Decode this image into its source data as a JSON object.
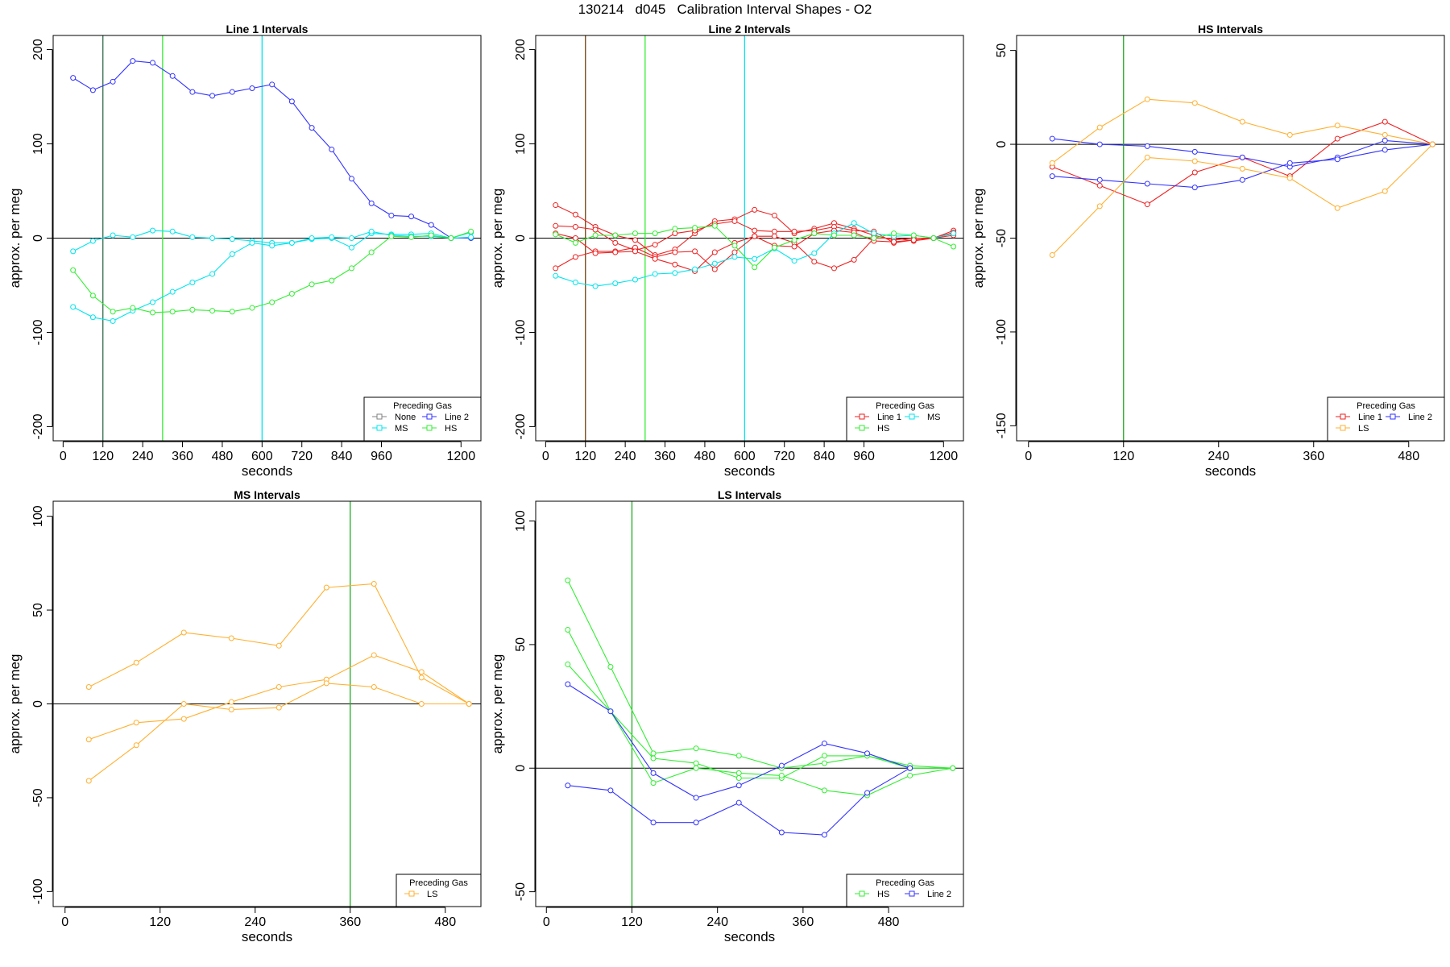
{
  "figure_title": "130214   d045   Calibration Interval Shapes - O2",
  "legend_title": "Preceding Gas",
  "colors": {
    "None": "#808080",
    "MS": "#00e5ee",
    "Line 2": "#3333ff",
    "HS": "#33ee33",
    "Line 1": "#ee2222",
    "LS": "#ffb030",
    "axis": "#000000",
    "vline_dark": "#2e6b4a",
    "vline_brown": "#704010",
    "vline_green": "#22aa22"
  },
  "chart_data": [
    {
      "type": "line",
      "title": "Line 1 Intervals",
      "xlabel": "seconds",
      "ylabel": "approx. per meg",
      "xlim": [
        -30,
        1260
      ],
      "ylim": [
        -215,
        215
      ],
      "xticks": [
        0,
        120,
        240,
        360,
        480,
        600,
        720,
        840,
        960,
        1200
      ],
      "yticks": [
        -200,
        -100,
        0,
        100,
        200
      ],
      "vlines": [
        {
          "x": 120,
          "color": "#2e6b4a"
        },
        {
          "x": 300,
          "color": "#33ee33"
        },
        {
          "x": 600,
          "color": "#00e5ee"
        }
      ],
      "legend": [
        {
          "label": "None",
          "color": "#808080"
        },
        {
          "label": "Line 2",
          "color": "#3333ff"
        },
        {
          "label": "MS",
          "color": "#00e5ee"
        },
        {
          "label": "HS",
          "color": "#33ee33"
        }
      ],
      "series": [
        {
          "name": "Line 2",
          "color": "#3333ff",
          "x": [
            30,
            90,
            150,
            210,
            270,
            330,
            390,
            450,
            510,
            570,
            630,
            690,
            750,
            810,
            870,
            930,
            990,
            1050,
            1110,
            1170,
            1230
          ],
          "y": [
            170,
            157,
            166,
            188,
            186,
            172,
            155,
            151,
            155,
            159,
            163,
            145,
            117,
            94,
            63,
            37,
            24,
            23,
            14,
            0,
            0
          ]
        },
        {
          "name": "MS",
          "color": "#00e5ee",
          "x": [
            30,
            90,
            150,
            210,
            270,
            330,
            390,
            450,
            510,
            570,
            630,
            690,
            750,
            810,
            870,
            930,
            990,
            1050,
            1110,
            1170,
            1230
          ],
          "y": [
            -14,
            -3,
            3,
            1,
            8,
            7,
            1,
            0,
            -1,
            -3,
            -5,
            -5,
            -1,
            0,
            -10,
            5,
            4,
            4,
            5,
            0,
            1
          ]
        },
        {
          "name": "MS",
          "color": "#00e5ee",
          "x": [
            30,
            90,
            150,
            210,
            270,
            330,
            390,
            450,
            510,
            570,
            630,
            690,
            750,
            810,
            870,
            930,
            990,
            1050,
            1110,
            1170,
            1230
          ],
          "y": [
            -73,
            -84,
            -88,
            -77,
            -68,
            -57,
            -47,
            -38,
            -17,
            -5,
            -8,
            -5,
            0,
            1,
            0,
            7,
            3,
            2,
            2,
            0,
            6
          ]
        },
        {
          "name": "HS",
          "color": "#33ee33",
          "x": [
            30,
            90,
            150,
            210,
            270,
            330,
            390,
            450,
            510,
            570,
            630,
            690,
            750,
            810,
            870,
            930,
            990,
            1050,
            1110,
            1170,
            1230
          ],
          "y": [
            -34,
            -61,
            -78,
            -74,
            -79,
            -78,
            -76,
            -77,
            -78,
            -74,
            -68,
            -59,
            -49,
            -45,
            -32,
            -15,
            2,
            1,
            3,
            0,
            7
          ]
        }
      ]
    },
    {
      "type": "line",
      "title": "Line 2 Intervals",
      "xlabel": "seconds",
      "ylabel": "approx. per meg",
      "xlim": [
        -30,
        1260
      ],
      "ylim": [
        -215,
        215
      ],
      "xticks": [
        0,
        120,
        240,
        360,
        480,
        600,
        720,
        840,
        960,
        1200
      ],
      "yticks": [
        -200,
        -100,
        0,
        100,
        200
      ],
      "vlines": [
        {
          "x": 120,
          "color": "#704010"
        },
        {
          "x": 300,
          "color": "#33ee33"
        },
        {
          "x": 600,
          "color": "#00e5ee"
        }
      ],
      "legend": [
        {
          "label": "Line 1",
          "color": "#ee2222"
        },
        {
          "label": "MS",
          "color": "#00e5ee"
        },
        {
          "label": "HS",
          "color": "#33ee33"
        }
      ],
      "series": [
        {
          "name": "Line 1",
          "color": "#ee2222",
          "x": [
            30,
            90,
            150,
            210,
            270,
            330,
            390,
            450,
            510,
            570,
            630,
            690,
            750,
            810,
            870,
            930,
            990,
            1050,
            1110,
            1170,
            1230
          ],
          "y": [
            35,
            25,
            12,
            3,
            -2,
            -18,
            -12,
            5,
            18,
            20,
            30,
            24,
            5,
            10,
            16,
            10,
            3,
            -2,
            0,
            0,
            8
          ]
        },
        {
          "name": "Line 1",
          "color": "#ee2222",
          "x": [
            30,
            90,
            150,
            210,
            270,
            330,
            390,
            450,
            510,
            570,
            630,
            690,
            750,
            810,
            870,
            930,
            990,
            1050,
            1110,
            1170,
            1230
          ],
          "y": [
            13,
            12,
            9,
            -5,
            -13,
            -7,
            5,
            8,
            15,
            18,
            8,
            7,
            7,
            8,
            12,
            8,
            7,
            -5,
            -2,
            0,
            5
          ]
        },
        {
          "name": "Line 1",
          "color": "#ee2222",
          "x": [
            30,
            90,
            150,
            210,
            270,
            330,
            390,
            450,
            510,
            570,
            630,
            690,
            750,
            810,
            870,
            930,
            990,
            1050,
            1110,
            1170,
            1230
          ],
          "y": [
            -32,
            -20,
            -14,
            -14,
            -10,
            -20,
            -15,
            -14,
            -33,
            -15,
            2,
            2,
            -5,
            -25,
            -32,
            -23,
            0,
            0,
            -3,
            0,
            6
          ]
        },
        {
          "name": "Line 1",
          "color": "#ee2222",
          "x": [
            30,
            90,
            150,
            210,
            270,
            330,
            390,
            450,
            510,
            570,
            630,
            690,
            750,
            810,
            870,
            930,
            990,
            1050,
            1110,
            1170,
            1230
          ],
          "y": [
            5,
            0,
            -16,
            -15,
            -14,
            -22,
            -28,
            -35,
            -15,
            -5,
            2,
            -8,
            -9,
            5,
            8,
            6,
            -3,
            -4,
            -2,
            0,
            3
          ]
        },
        {
          "name": "MS",
          "color": "#00e5ee",
          "x": [
            30,
            90,
            150,
            210,
            270,
            330,
            390,
            450,
            510,
            570,
            630,
            690,
            750,
            810,
            870,
            930,
            990,
            1050,
            1110,
            1170,
            1230
          ],
          "y": [
            -40,
            -47,
            -51,
            -48,
            -44,
            -38,
            -37,
            -33,
            -27,
            -20,
            -22,
            -11,
            -24,
            -16,
            5,
            16,
            5,
            2,
            3,
            0,
            5
          ]
        },
        {
          "name": "HS",
          "color": "#33ee33",
          "x": [
            30,
            90,
            150,
            210,
            270,
            330,
            390,
            450,
            510,
            570,
            630,
            690,
            750,
            810,
            870,
            930,
            990,
            1050,
            1110,
            1170,
            1230
          ],
          "y": [
            4,
            -5,
            3,
            3,
            5,
            5,
            10,
            11,
            13,
            -8,
            -31,
            -10,
            -2,
            5,
            3,
            3,
            0,
            5,
            3,
            0,
            -9
          ]
        }
      ]
    },
    {
      "type": "line",
      "title": "HS Intervals",
      "xlabel": "seconds",
      "ylabel": "approx. per meg",
      "xlim": [
        -15,
        525
      ],
      "ylim": [
        -158,
        58
      ],
      "xticks": [
        0,
        120,
        240,
        360,
        480
      ],
      "yticks": [
        -150,
        -100,
        -50,
        0,
        50
      ],
      "vlines": [
        {
          "x": 120,
          "color": "#22aa22"
        }
      ],
      "legend": [
        {
          "label": "Line 1",
          "color": "#ee2222"
        },
        {
          "label": "Line 2",
          "color": "#3333ff"
        },
        {
          "label": "LS",
          "color": "#ffb030"
        }
      ],
      "series": [
        {
          "name": "Line 1",
          "color": "#ee2222",
          "x": [
            30,
            90,
            150,
            210,
            270,
            330,
            390,
            450,
            510
          ],
          "y": [
            -12,
            -22,
            -32,
            -15,
            -7,
            -17,
            3,
            12,
            0
          ]
        },
        {
          "name": "Line 2",
          "color": "#3333ff",
          "x": [
            30,
            90,
            150,
            210,
            270,
            330,
            390,
            450,
            510
          ],
          "y": [
            3,
            0,
            -1,
            -4,
            -7,
            -12,
            -7,
            2,
            0
          ]
        },
        {
          "name": "Line 2",
          "color": "#3333ff",
          "x": [
            30,
            90,
            150,
            210,
            270,
            330,
            390,
            450,
            510
          ],
          "y": [
            -17,
            -19,
            -21,
            -23,
            -19,
            -10,
            -8,
            -3,
            0
          ]
        },
        {
          "name": "LS",
          "color": "#ffb030",
          "x": [
            30,
            90,
            150,
            210,
            270,
            330,
            390,
            450,
            510
          ],
          "y": [
            -10,
            9,
            24,
            22,
            12,
            5,
            10,
            5,
            0
          ]
        },
        {
          "name": "LS",
          "color": "#ffb030",
          "x": [
            30,
            90,
            150,
            210,
            270,
            330,
            390,
            450,
            510
          ],
          "y": [
            -59,
            -33,
            -7,
            -9,
            -13,
            -18,
            -34,
            -25,
            0
          ]
        }
      ]
    },
    {
      "type": "line",
      "title": "MS Intervals",
      "xlabel": "seconds",
      "ylabel": "approx. per meg",
      "xlim": [
        -15,
        525
      ],
      "ylim": [
        -108,
        108
      ],
      "xticks": [
        0,
        120,
        240,
        360,
        480
      ],
      "yticks": [
        -100,
        -50,
        0,
        50,
        100
      ],
      "vlines": [
        {
          "x": 360,
          "color": "#22aa22"
        }
      ],
      "legend": [
        {
          "label": "LS",
          "color": "#ffb030"
        }
      ],
      "series": [
        {
          "name": "LS",
          "color": "#ffb030",
          "x": [
            30,
            90,
            150,
            210,
            270,
            330,
            390,
            450,
            510
          ],
          "y": [
            9,
            22,
            38,
            35,
            31,
            62,
            64,
            14,
            0
          ]
        },
        {
          "name": "LS",
          "color": "#ffb030",
          "x": [
            30,
            90,
            150,
            210,
            270,
            330,
            390,
            450,
            510
          ],
          "y": [
            -19,
            -10,
            -8,
            1,
            9,
            13,
            26,
            17,
            0
          ]
        },
        {
          "name": "LS",
          "color": "#ffb030",
          "x": [
            30,
            90,
            150,
            210,
            270,
            330,
            390,
            450,
            510
          ],
          "y": [
            -41,
            -22,
            0,
            -3,
            -2,
            11,
            9,
            0,
            0
          ]
        }
      ]
    },
    {
      "type": "line",
      "title": "LS Intervals",
      "xlabel": "seconds",
      "ylabel": "approx. per meg",
      "xlim": [
        -15,
        585
      ],
      "ylim": [
        -56,
        108
      ],
      "xticks": [
        0,
        120,
        240,
        360,
        480
      ],
      "yticks": [
        -50,
        0,
        50,
        100
      ],
      "vlines": [
        {
          "x": 120,
          "color": "#22aa22"
        }
      ],
      "legend": [
        {
          "label": "HS",
          "color": "#33ee33"
        },
        {
          "label": "Line 2",
          "color": "#3333ff"
        }
      ],
      "series": [
        {
          "name": "HS",
          "color": "#33ee33",
          "x": [
            30,
            90,
            150,
            210,
            270,
            330,
            390,
            450,
            510,
            570
          ],
          "y": [
            76,
            41,
            6,
            8,
            5,
            0,
            2,
            5,
            1,
            0
          ]
        },
        {
          "name": "HS",
          "color": "#33ee33",
          "x": [
            30,
            90,
            150,
            210,
            270,
            330,
            390,
            450,
            510,
            570
          ],
          "y": [
            56,
            23,
            4,
            2,
            -4,
            -4,
            5,
            5,
            0,
            0
          ]
        },
        {
          "name": "HS",
          "color": "#33ee33",
          "x": [
            30,
            90,
            150,
            210,
            270,
            330,
            390,
            450,
            510,
            570
          ],
          "y": [
            42,
            23,
            -6,
            0,
            -2,
            -3,
            -9,
            -11,
            -3,
            0
          ]
        },
        {
          "name": "Line 2",
          "color": "#3333ff",
          "x": [
            30,
            90,
            150,
            210,
            270,
            330,
            390,
            450,
            510
          ],
          "y": [
            34,
            23,
            -2,
            -12,
            -7,
            1,
            10,
            6,
            0
          ]
        },
        {
          "name": "Line 2",
          "color": "#3333ff",
          "x": [
            30,
            90,
            150,
            210,
            270,
            330,
            390,
            450,
            510
          ],
          "y": [
            -7,
            -9,
            -22,
            -22,
            -14,
            -26,
            -27,
            -10,
            0
          ]
        }
      ]
    }
  ]
}
